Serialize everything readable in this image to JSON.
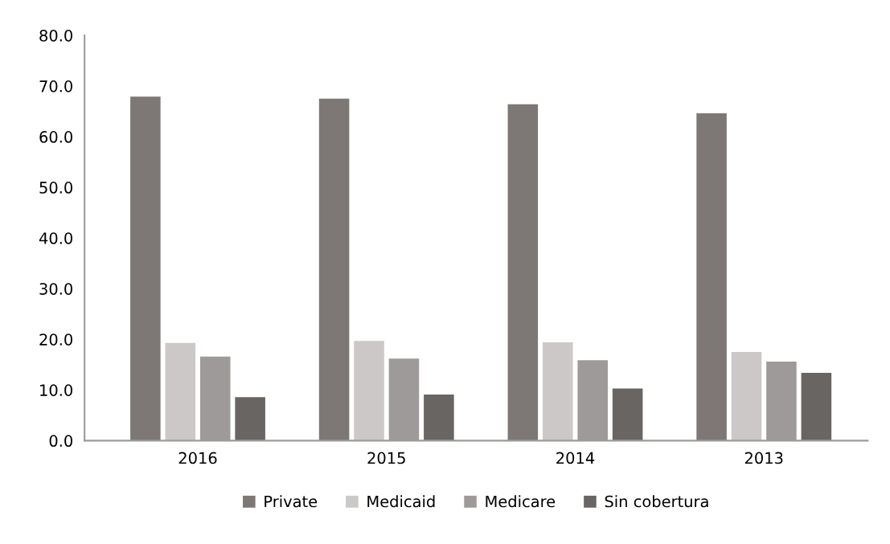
{
  "chart_data": {
    "type": "bar",
    "categories": [
      "2016",
      "2015",
      "2014",
      "2013"
    ],
    "series": [
      {
        "name": "Private",
        "color": "#7d7876",
        "values": [
          67.9,
          67.5,
          66.4,
          64.6
        ]
      },
      {
        "name": "Medicaid",
        "color": "#ccc8c7",
        "values": [
          19.3,
          19.7,
          19.4,
          17.5
        ]
      },
      {
        "name": "Medicare",
        "color": "#9e9a99",
        "values": [
          16.6,
          16.2,
          15.9,
          15.6
        ]
      },
      {
        "name": "Sin cobertura",
        "color": "#696562",
        "values": [
          8.6,
          9.1,
          10.3,
          13.4
        ]
      }
    ],
    "ylim": [
      0,
      80
    ],
    "yticks": [
      {
        "value": 0,
        "label": "0.0"
      },
      {
        "value": 10,
        "label": "10.0"
      },
      {
        "value": 20,
        "label": "20.0"
      },
      {
        "value": 30,
        "label": "30.0"
      },
      {
        "value": 40,
        "label": "40.0"
      },
      {
        "value": 50,
        "label": "50.0"
      },
      {
        "value": 60,
        "label": "60.0"
      },
      {
        "value": 70,
        "label": "70.0"
      },
      {
        "value": 80,
        "label": "80.0"
      }
    ],
    "grid": false,
    "legend": "bottom"
  }
}
